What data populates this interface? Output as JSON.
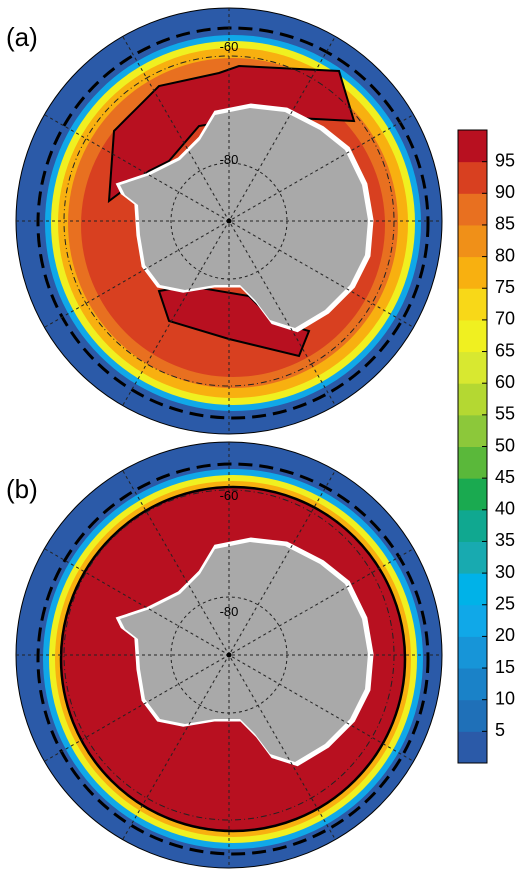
{
  "panels": [
    {
      "label": "(a)",
      "lat_labels": [
        "-60",
        "-80"
      ]
    },
    {
      "label": "(b)",
      "lat_labels": [
        "-60",
        "-80"
      ]
    }
  ],
  "colorbar": {
    "ticks": [
      5,
      10,
      15,
      20,
      25,
      30,
      35,
      40,
      45,
      50,
      55,
      60,
      65,
      70,
      75,
      80,
      85,
      90,
      95
    ],
    "colors": [
      "#2b5aa8",
      "#1f70b8",
      "#1a82c8",
      "#1795d8",
      "#10a8e8",
      "#00b2e8",
      "#18aab0",
      "#10a890",
      "#1aaa50",
      "#5ab83a",
      "#8cc83a",
      "#b4d832",
      "#d8e830",
      "#f0f020",
      "#f8d818",
      "#f8b010",
      "#f09018",
      "#e87020",
      "#d84020",
      "#b81020"
    ]
  }
}
